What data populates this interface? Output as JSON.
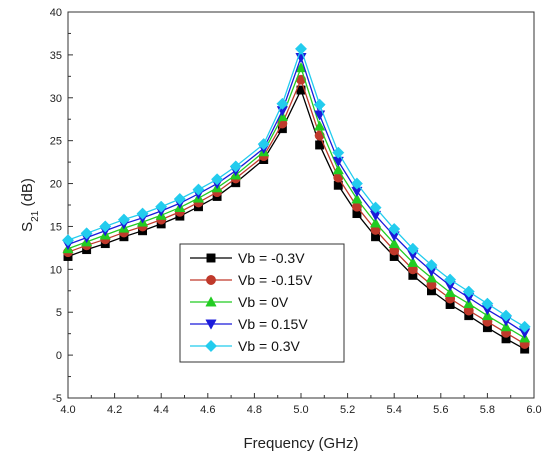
{
  "chart_data": {
    "type": "line",
    "title": "",
    "xlabel": "Frequency (GHz)",
    "ylabel": {
      "main": "S",
      "sub": "21",
      "unit": " (dB)"
    },
    "xlim": [
      4.0,
      6.0
    ],
    "ylim": [
      -5,
      40
    ],
    "xticks": [
      "4.0",
      "4.2",
      "4.4",
      "4.6",
      "4.8",
      "5.0",
      "5.2",
      "5.4",
      "5.6",
      "5.8",
      "6.0"
    ],
    "yticks": [
      "-5",
      "0",
      "5",
      "10",
      "15",
      "20",
      "25",
      "30",
      "35",
      "40"
    ],
    "grid": false,
    "legend_position": "bottom-left",
    "x": [
      4.0,
      4.08,
      4.16,
      4.24,
      4.32,
      4.4,
      4.48,
      4.56,
      4.64,
      4.72,
      4.84,
      4.92,
      5.0,
      5.08,
      5.16,
      5.24,
      5.32,
      5.4,
      5.48,
      5.56,
      5.64,
      5.72,
      5.8,
      5.88,
      5.96
    ],
    "series": [
      {
        "name": "Vb = -0.3V",
        "color": "#000000",
        "marker": "square",
        "offset": 0.0,
        "values": [
          11.5,
          12.3,
          13.0,
          13.8,
          14.5,
          15.3,
          16.2,
          17.3,
          18.5,
          20.1,
          22.8,
          26.4,
          30.9,
          24.5,
          19.8,
          16.5,
          13.8,
          11.5,
          9.3,
          7.5,
          5.9,
          4.6,
          3.2,
          1.9,
          0.7
        ]
      },
      {
        "name": "Vb = -0.15V",
        "color": "#c0392b",
        "marker": "circle",
        "values": [
          12.0,
          12.8,
          13.5,
          14.3,
          15.0,
          15.8,
          16.7,
          17.8,
          19.0,
          20.6,
          23.2,
          27.0,
          32.1,
          25.6,
          20.7,
          17.3,
          14.6,
          12.2,
          10.0,
          8.2,
          6.6,
          5.2,
          3.9,
          2.6,
          1.3
        ]
      },
      {
        "name": "Vb = 0V",
        "color": "#22cc22",
        "marker": "triangle-up",
        "values": [
          12.4,
          13.2,
          14.0,
          14.8,
          15.5,
          16.3,
          17.2,
          18.3,
          19.5,
          21.0,
          23.7,
          27.8,
          33.5,
          26.7,
          21.6,
          18.2,
          15.4,
          13.0,
          10.8,
          9.0,
          7.3,
          6.0,
          4.6,
          3.3,
          2.0
        ]
      },
      {
        "name": "Vb = 0.15V",
        "color": "#1a1adb",
        "marker": "triangle-down",
        "values": [
          12.9,
          13.7,
          14.5,
          15.3,
          16.0,
          16.8,
          17.7,
          18.8,
          20.0,
          21.5,
          24.1,
          28.5,
          34.7,
          28.0,
          22.6,
          19.1,
          16.3,
          13.9,
          11.7,
          9.8,
          8.1,
          6.7,
          5.3,
          4.0,
          2.6
        ]
      },
      {
        "name": "Vb = 0.3V",
        "color": "#22ccee",
        "marker": "diamond",
        "values": [
          13.4,
          14.2,
          15.0,
          15.8,
          16.5,
          17.3,
          18.2,
          19.3,
          20.5,
          22.0,
          24.6,
          29.3,
          35.7,
          29.2,
          23.6,
          20.0,
          17.2,
          14.7,
          12.4,
          10.5,
          8.8,
          7.4,
          6.0,
          4.6,
          3.3
        ]
      }
    ]
  }
}
